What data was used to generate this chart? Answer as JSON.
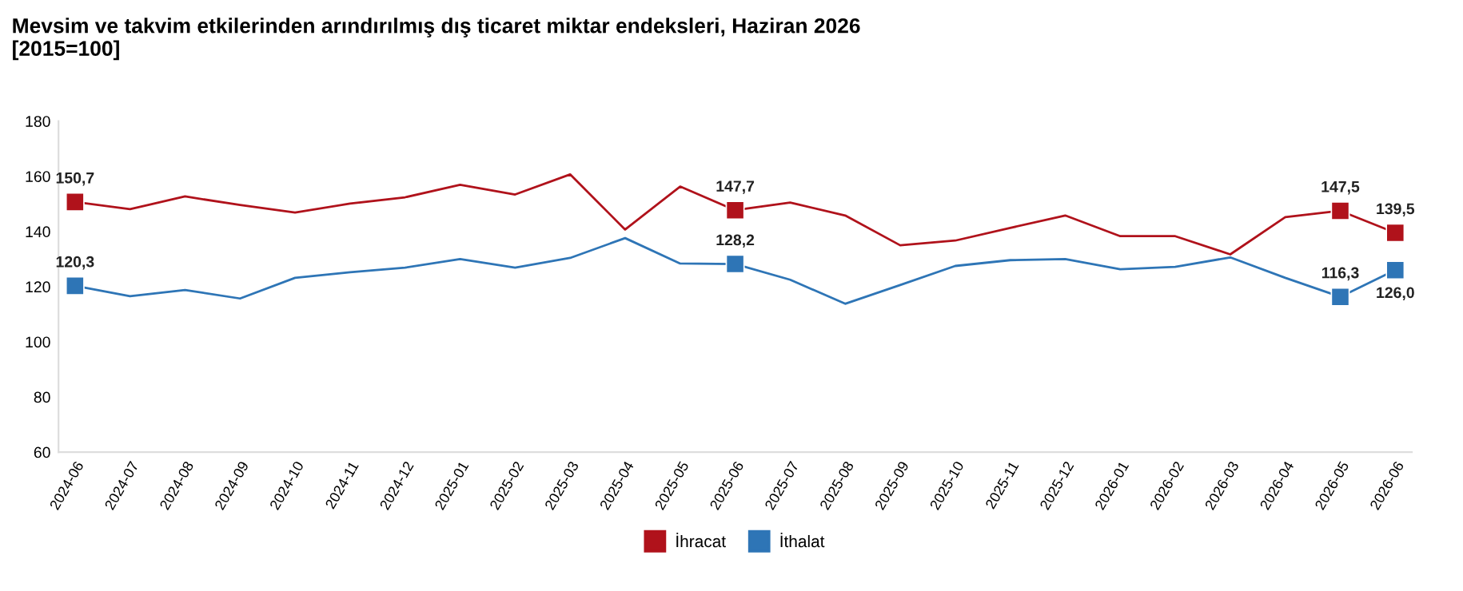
{
  "chart_data": {
    "type": "line",
    "title": "Mevsim ve takvim etkilerinden arındırılmış dış ticaret miktar endeksleri, Haziran 2026\n[2015=100]",
    "categories": [
      "2024-06",
      "2024-07",
      "2024-08",
      "2024-09",
      "2024-10",
      "2024-11",
      "2024-12",
      "2025-01",
      "2025-02",
      "2025-03",
      "2025-04",
      "2025-05",
      "2025-06",
      "2025-07",
      "2025-08",
      "2025-09",
      "2025-10",
      "2025-11",
      "2025-12",
      "2026-01",
      "2026-02",
      "2026-03",
      "2026-04",
      "2026-05",
      "2026-06"
    ],
    "series": [
      {
        "name": "İhracat",
        "color": "#b0121b",
        "values": [
          150.7,
          148.1,
          152.7,
          149.6,
          146.9,
          150.1,
          152.4,
          156.9,
          153.4,
          160.7,
          140.7,
          156.3,
          147.7,
          150.5,
          145.8,
          135.0,
          136.7,
          141.3,
          145.8,
          138.3,
          138.3,
          131.7,
          145.2,
          147.5,
          139.5
        ],
        "value_labels": [
          "150,7",
          null,
          null,
          null,
          null,
          null,
          null,
          null,
          null,
          null,
          null,
          null,
          "147,7",
          null,
          null,
          null,
          null,
          null,
          null,
          null,
          null,
          null,
          null,
          "147,5",
          "139,5"
        ]
      },
      {
        "name": "İthalat",
        "color": "#2e75b6",
        "values": [
          120.3,
          116.5,
          118.8,
          115.7,
          123.2,
          125.2,
          126.9,
          130.0,
          126.9,
          130.4,
          137.6,
          128.4,
          128.2,
          122.5,
          113.8,
          120.6,
          127.5,
          129.6,
          130.0,
          126.3,
          127.2,
          130.6,
          123.2,
          116.3,
          126.0
        ],
        "value_labels": [
          "120,3",
          null,
          null,
          null,
          null,
          null,
          null,
          null,
          null,
          null,
          null,
          null,
          "128,2",
          null,
          null,
          null,
          null,
          null,
          null,
          null,
          null,
          null,
          null,
          "116,3",
          "126,0"
        ]
      }
    ],
    "ylim": [
      60,
      180
    ],
    "yticks": [
      60,
      80,
      100,
      120,
      140,
      160,
      180
    ],
    "grid": false,
    "legend": "bottom",
    "line_style": "solid"
  }
}
